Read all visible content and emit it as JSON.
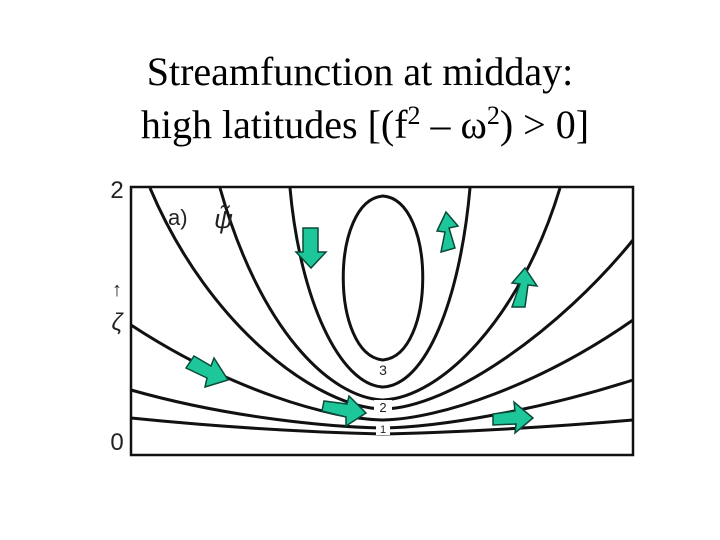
{
  "title": {
    "line1": "Streamfunction at midday:",
    "line2": [
      "high latitudes [(f",
      "2",
      " – ω",
      "2",
      ") > 0]"
    ]
  },
  "figure": {
    "panel_label": "a)",
    "variable": "ψ̃",
    "axis_top": "2",
    "axis_bottom": "0",
    "axis_arrow": "↑",
    "axis_label": "ζ",
    "contour_labels": [
      "3",
      "2",
      "1"
    ]
  }
}
